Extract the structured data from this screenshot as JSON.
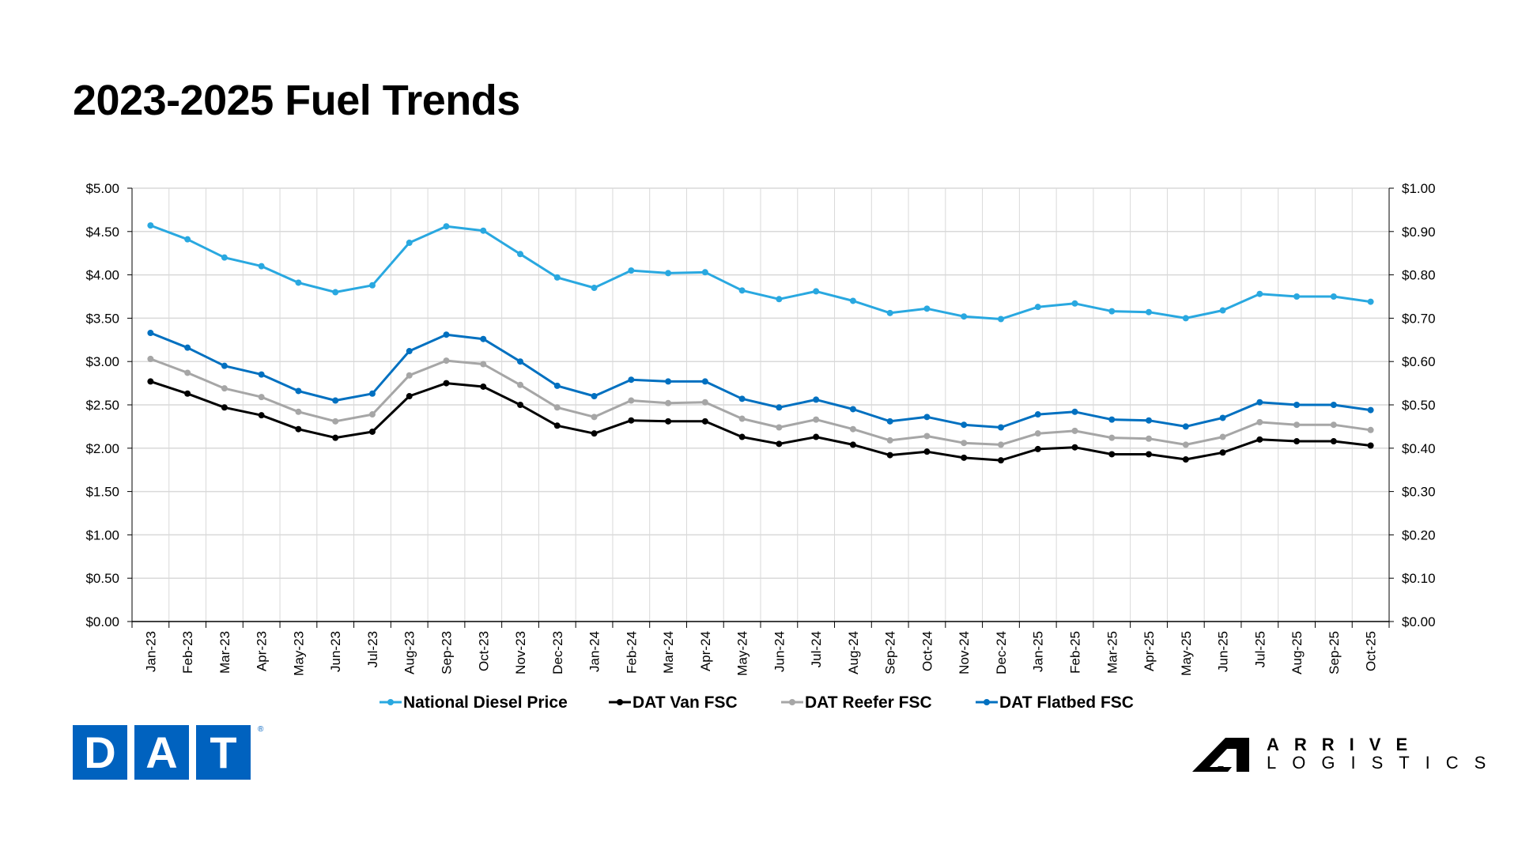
{
  "chart_data": {
    "type": "line",
    "title": "2023-2025 Fuel Trends",
    "categories": [
      "Jan-23",
      "Feb-23",
      "Mar-23",
      "Apr-23",
      "May-23",
      "Jun-23",
      "Jul-23",
      "Aug-23",
      "Sep-23",
      "Oct-23",
      "Nov-23",
      "Dec-23",
      "Jan-24",
      "Feb-24",
      "Mar-24",
      "Apr-24",
      "May-24",
      "Jun-24",
      "Jul-24",
      "Aug-24",
      "Sep-24",
      "Oct-24",
      "Nov-24",
      "Dec-24",
      "Jan-25",
      "Feb-25",
      "Mar-25",
      "Apr-25",
      "May-25",
      "Jun-25",
      "Jul-25",
      "Aug-25",
      "Sep-25",
      "Oct-25"
    ],
    "y_left": {
      "range": [
        0,
        5
      ],
      "ticks": [
        "$0.00",
        "$0.50",
        "$1.00",
        "$1.50",
        "$2.00",
        "$2.50",
        "$3.00",
        "$3.50",
        "$4.00",
        "$4.50",
        "$5.00"
      ]
    },
    "y_right": {
      "range": [
        0,
        1
      ],
      "ticks": [
        "$0.00",
        "$0.10",
        "$0.20",
        "$0.30",
        "$0.40",
        "$0.50",
        "$0.60",
        "$0.70",
        "$0.80",
        "$0.90",
        "$1.00"
      ]
    },
    "grid": true,
    "legend_position": "bottom",
    "series": [
      {
        "name": "National Diesel Price",
        "axis": "left",
        "color": "#29a8e0",
        "values": [
          4.57,
          4.41,
          4.2,
          4.1,
          3.91,
          3.8,
          3.88,
          4.37,
          4.56,
          4.51,
          4.24,
          3.97,
          3.85,
          4.05,
          4.02,
          4.03,
          3.82,
          3.72,
          3.81,
          3.7,
          3.56,
          3.61,
          3.52,
          3.49,
          3.63,
          3.67,
          3.58,
          3.57,
          3.5,
          3.59,
          3.78,
          3.75,
          3.75,
          3.69
        ]
      },
      {
        "name": "DAT Van FSC",
        "axis": "right",
        "color": "#000000",
        "values": [
          0.554,
          0.526,
          0.494,
          0.476,
          0.444,
          0.424,
          0.438,
          0.52,
          0.55,
          0.542,
          0.5,
          0.452,
          0.434,
          0.464,
          0.462,
          0.462,
          0.426,
          0.41,
          0.426,
          0.408,
          0.384,
          0.392,
          0.378,
          0.372,
          0.398,
          0.402,
          0.386,
          0.386,
          0.374,
          0.39,
          0.42,
          0.416,
          0.416,
          0.406
        ]
      },
      {
        "name": "DAT Reefer FSC",
        "axis": "right",
        "color": "#a6a6a6",
        "values": [
          0.606,
          0.574,
          0.538,
          0.518,
          0.484,
          0.462,
          0.478,
          0.568,
          0.602,
          0.594,
          0.546,
          0.494,
          0.472,
          0.51,
          0.504,
          0.506,
          0.468,
          0.448,
          0.466,
          0.444,
          0.418,
          0.428,
          0.412,
          0.408,
          0.434,
          0.44,
          0.424,
          0.422,
          0.408,
          0.426,
          0.46,
          0.454,
          0.454,
          0.442
        ]
      },
      {
        "name": "DAT Flatbed FSC",
        "axis": "right",
        "color": "#0070c0",
        "values": [
          0.666,
          0.632,
          0.59,
          0.57,
          0.532,
          0.51,
          0.526,
          0.624,
          0.662,
          0.652,
          0.6,
          0.544,
          0.52,
          0.558,
          0.554,
          0.554,
          0.514,
          0.494,
          0.512,
          0.49,
          0.462,
          0.472,
          0.454,
          0.448,
          0.478,
          0.484,
          0.466,
          0.464,
          0.45,
          0.47,
          0.506,
          0.5,
          0.5,
          0.488
        ]
      }
    ]
  },
  "logos": {
    "dat": {
      "letters": [
        "D",
        "A",
        "T"
      ],
      "mark": "®",
      "color": "#0062bf"
    },
    "arrive": {
      "line1": "ARRIVE",
      "line2": "LOGISTICS"
    }
  }
}
